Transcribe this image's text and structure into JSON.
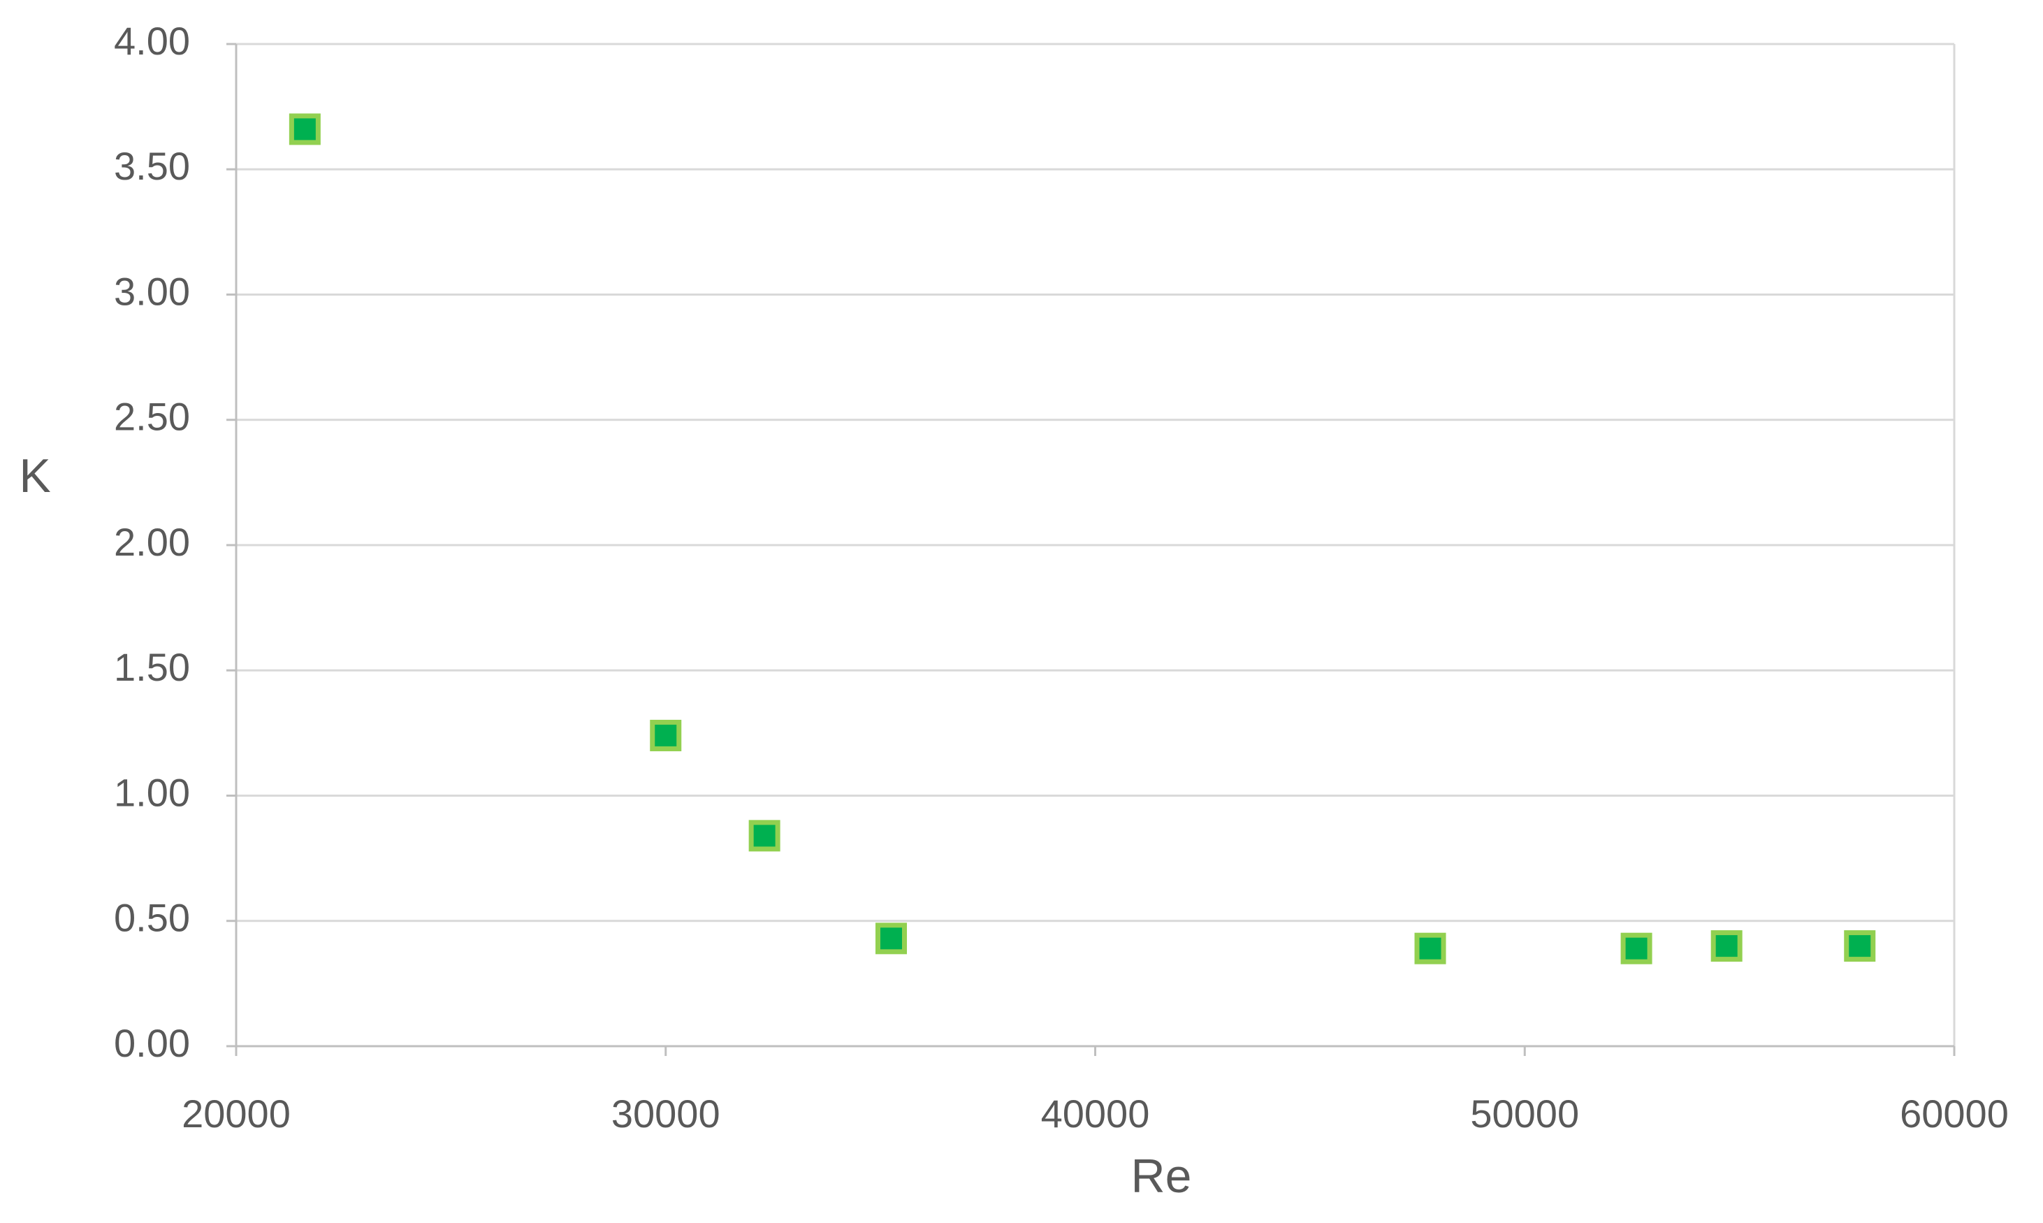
{
  "chart_data": {
    "type": "scatter",
    "x_label": "Re",
    "y_label": "K",
    "series": [
      {
        "name": "K",
        "color": "#00b050",
        "edge_color": "#92d050",
        "x": [
          21600,
          30000,
          32300,
          35250,
          47800,
          52600,
          54700,
          57800
        ],
        "values": [
          3.66,
          1.24,
          0.84,
          0.43,
          0.39,
          0.39,
          0.4,
          0.4
        ]
      }
    ],
    "xlim": [
      20000,
      60000
    ],
    "xticks": [
      20000,
      30000,
      40000,
      50000,
      60000
    ],
    "ylim": [
      0,
      4
    ],
    "yticks": [
      {
        "value": 0,
        "label": "0.00"
      },
      {
        "value": 0.5,
        "label": "0.50"
      },
      {
        "value": 1,
        "label": "1.00"
      },
      {
        "value": 1.5,
        "label": "1.50"
      },
      {
        "value": 2,
        "label": "2.00"
      },
      {
        "value": 2.5,
        "label": "2.50"
      },
      {
        "value": 3,
        "label": "3.00"
      },
      {
        "value": 3.5,
        "label": "3.50"
      },
      {
        "value": 4,
        "label": "4.00"
      }
    ],
    "grid": true
  }
}
